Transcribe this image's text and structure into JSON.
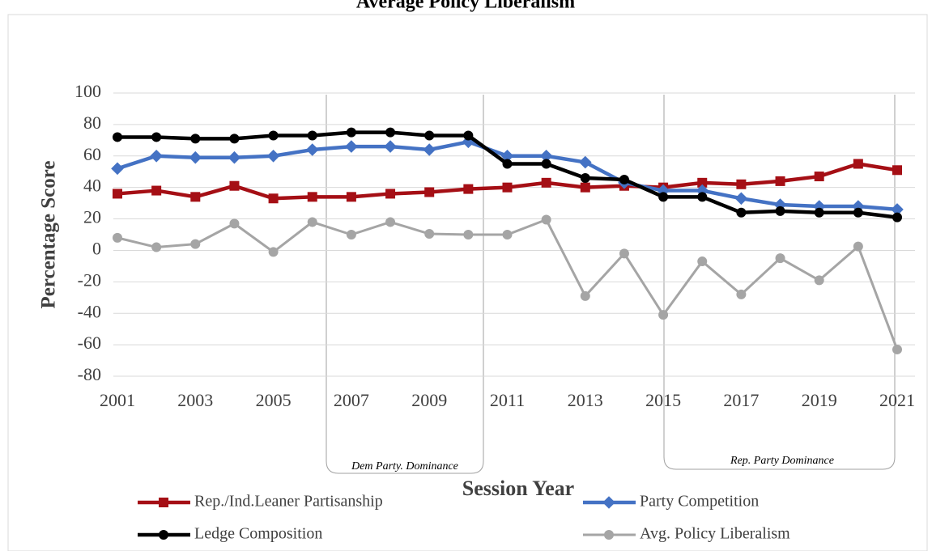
{
  "chart_data": {
    "type": "line",
    "title": "Average Policy Liberalism",
    "x_label": "Session Year",
    "y_label": "Percentage Score",
    "x": [
      2001,
      2002,
      2003,
      2004,
      2005,
      2006,
      2007,
      2008,
      2009,
      2010,
      2011,
      2012,
      2013,
      2014,
      2015,
      2016,
      2017,
      2018,
      2019,
      2020,
      2021
    ],
    "xlim": [
      2001,
      2021
    ],
    "xticks": [
      2001,
      2003,
      2005,
      2007,
      2009,
      2011,
      2013,
      2015,
      2017,
      2019,
      2021
    ],
    "ylim": [
      -80,
      100
    ],
    "yticks": [
      -80,
      -60,
      -40,
      -20,
      0,
      20,
      40,
      60,
      80,
      100
    ],
    "grid": true,
    "series": [
      {
        "name": "Rep./Ind.Leaner Partisanship",
        "color": "#a50f15",
        "marker": "square",
        "values": [
          36,
          38,
          34,
          41,
          33,
          34,
          34,
          36,
          37,
          39,
          40,
          43,
          40,
          41,
          40,
          43,
          42,
          44,
          47,
          55,
          51
        ]
      },
      {
        "name": "Party Competition",
        "color": "#4472c4",
        "marker": "diamond",
        "values": [
          52,
          60,
          59,
          59,
          60,
          64,
          66,
          66,
          64,
          69,
          60,
          60,
          56,
          43,
          38,
          38,
          33,
          29,
          28,
          28,
          26
        ]
      },
      {
        "name": "Ledge Composition",
        "color": "#000000",
        "marker": "circle",
        "values": [
          72,
          72,
          71,
          71,
          73,
          73,
          75,
          75,
          73,
          73,
          55,
          55,
          46,
          45,
          34,
          34,
          24,
          25,
          24,
          24,
          21
        ]
      },
      {
        "name": "Avg. Policy Liberalism",
        "color": "#a5a5a5",
        "marker": "circle",
        "values": [
          8,
          2,
          4,
          17,
          -1,
          18,
          10,
          18,
          10.5,
          10,
          10,
          19.5,
          -29,
          -2,
          -41,
          -7,
          -28,
          -5,
          -19,
          2.5,
          -63
        ]
      }
    ],
    "annotations": [
      "Dem Party. Dominance",
      "Rep. Party Dominance"
    ]
  }
}
